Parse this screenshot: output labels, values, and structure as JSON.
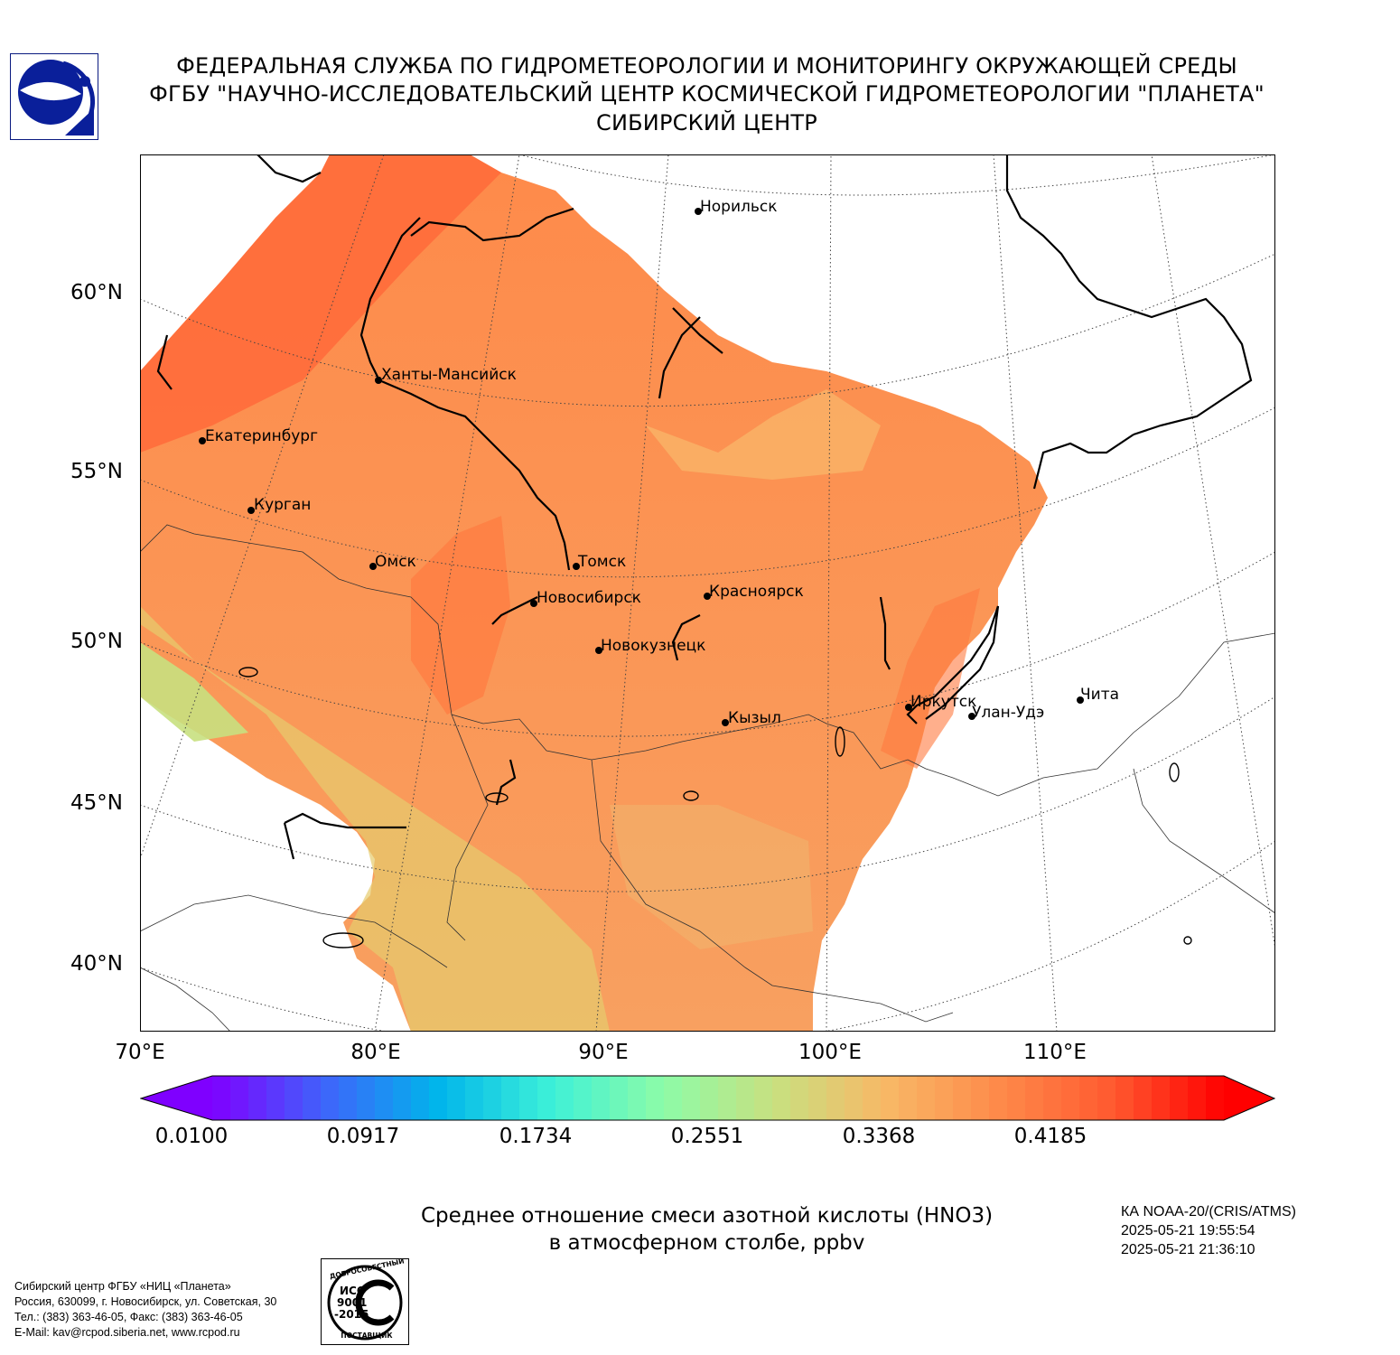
{
  "header": {
    "line1": "ФЕДЕРАЛЬНАЯ СЛУЖБА ПО ГИДРОМЕТЕОРОЛОГИИ И МОНИТОРИНГУ ОКРУЖАЮЩЕЙ СРЕДЫ",
    "line2": "ФГБУ \"НАУЧНО-ИССЛЕДОВАТЕЛЬСКИЙ ЦЕНТР КОСМИЧЕСКОЙ ГИДРОМЕТЕОРОЛОГИИ \"ПЛАНЕТА\"",
    "line3": "СИБИРСКИЙ ЦЕНТР"
  },
  "map": {
    "lat_labels": [
      "60°N",
      "55°N",
      "50°N",
      "45°N",
      "40°N"
    ],
    "lon_labels": [
      "70°E",
      "80°E",
      "90°E",
      "100°E",
      "110°E"
    ],
    "cities": [
      {
        "name": "Норильск"
      },
      {
        "name": "Ханты-Мансийск"
      },
      {
        "name": "Екатеринбург"
      },
      {
        "name": "Курган"
      },
      {
        "name": "Омск"
      },
      {
        "name": "Томск"
      },
      {
        "name": "Новосибирск"
      },
      {
        "name": "Красноярск"
      },
      {
        "name": "Новокузнецк"
      },
      {
        "name": "Иркутск"
      },
      {
        "name": "Улан-Удэ"
      },
      {
        "name": "Чита"
      },
      {
        "name": "Кызыл"
      }
    ]
  },
  "colorbar": {
    "ticks": [
      "0.0100",
      "0.0917",
      "0.1734",
      "0.2551",
      "0.3368",
      "0.4185"
    ],
    "colors": [
      "#7f00ff",
      "#3f64fb",
      "#00b4eb",
      "#3cf0d8",
      "#8cfca8",
      "#c8e080",
      "#f8b866",
      "#fe8a4a",
      "#ff5a30",
      "#ff0000"
    ]
  },
  "caption": {
    "line1": "Среднее отношение смеси азотной кислоты (HNO3)",
    "line2": "в атмосферном столбе, ppbv"
  },
  "satellite": {
    "name": "КА NOAA-20/(CRIS/ATMS)",
    "time1": "2025-05-21 19:55:54",
    "time2": "2025-05-21 21:36:10"
  },
  "contact": {
    "line1": "Сибирский центр ФГБУ «НИЦ «Планета»",
    "line2": "Россия, 630099, г. Новосибирск, ул. Советская, 30",
    "line3": "Тел.: (383) 363-46-05, Факс: (383) 363-46-05",
    "line4": "E-Mail: kav@rcpod.siberia.net, www.rcpod.ru"
  },
  "iso_badge": {
    "top_text": "ДОБРОСОВЕСТНЫЙ",
    "center_text1": "ИСО",
    "center_text2": "9001",
    "center_text3": "-2015",
    "bottom_text": "ПОСТАВЩИК"
  },
  "icons": {
    "logo": "planeta-logo-icon"
  }
}
